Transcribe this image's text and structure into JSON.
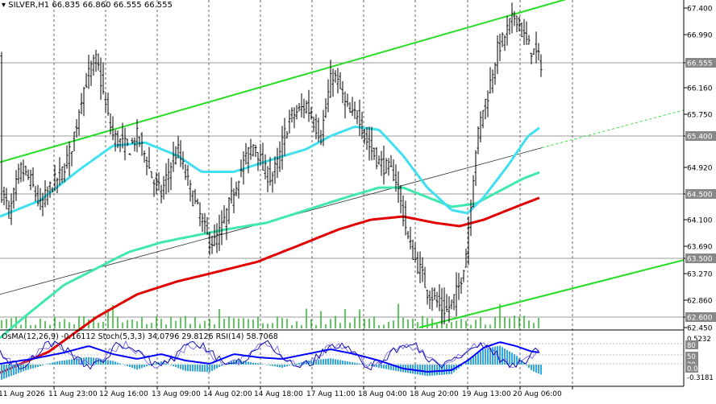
{
  "header": {
    "symbol": "SILVER,H1",
    "ohlc": "66.835 66.860 66.555 66.555"
  },
  "indicator_header": "OsMA(12,26,9) -0.16112 Stoch(5,3,3) 34.0796 29.8126 RSI(14) 58.7068",
  "colors": {
    "price_bars": "#000000",
    "ema_fast": "#40e0f0",
    "ema_mid": "#40e8b0",
    "ema_slow": "#e00000",
    "channel": "#22dd22",
    "level_line": "#777777",
    "volume": "#1db41d",
    "osma_hist": "#33aadd",
    "stoch_main": "#0000aa",
    "stoch_signal": "#7b68ee",
    "rsi": "#0000ff"
  },
  "chart_data": {
    "type": "line",
    "title": "SILVER,H1",
    "y_ticks": [
      "67.400",
      "66.990",
      "66.555",
      "66.160",
      "65.750",
      "65.400",
      "64.920",
      "64.500",
      "64.100",
      "63.690",
      "63.500",
      "63.270",
      "62.860",
      "62.600",
      "62.450"
    ],
    "current_price": "66.555",
    "levels": [
      "66.555",
      "65.400",
      "64.500",
      "63.500",
      "62.600"
    ],
    "ylim": [
      62.45,
      67.6
    ],
    "x_ticks": [
      "11 Aug 2026",
      "11 Aug 23:00",
      "12 Aug 16:00",
      "13 Aug 09:00",
      "14 Aug 02:00",
      "14 Aug 18:00",
      "17 Aug 11:00",
      "18 Aug 04:00",
      "18 Aug 20:00",
      "19 Aug 13:00",
      "20 Aug 06:00"
    ],
    "indicator_y_ticks": [
      "0.5232",
      "80",
      "50",
      "20",
      "0.00",
      "-0.3181"
    ],
    "indicator_ylim": [
      -0.3181,
      0.5232
    ],
    "price_path_keypoints": [
      [
        0,
        64.6
      ],
      [
        12,
        64.2
      ],
      [
        25,
        64.9
      ],
      [
        38,
        64.7
      ],
      [
        50,
        64.3
      ],
      [
        62,
        64.6
      ],
      [
        75,
        64.8
      ],
      [
        88,
        65.2
      ],
      [
        95,
        65.6
      ],
      [
        100,
        66.0
      ],
      [
        108,
        66.3
      ],
      [
        114,
        66.5
      ],
      [
        120,
        66.6
      ],
      [
        126,
        66.2
      ],
      [
        132,
        65.8
      ],
      [
        140,
        65.4
      ],
      [
        150,
        65.3
      ],
      [
        160,
        65.2
      ],
      [
        170,
        65.4
      ],
      [
        180,
        65.1
      ],
      [
        190,
        64.7
      ],
      [
        200,
        64.5
      ],
      [
        210,
        64.9
      ],
      [
        220,
        65.2
      ],
      [
        230,
        64.8
      ],
      [
        240,
        64.4
      ],
      [
        250,
        64.1
      ],
      [
        258,
        63.8
      ],
      [
        266,
        63.75
      ],
      [
        276,
        64.0
      ],
      [
        286,
        64.4
      ],
      [
        296,
        64.8
      ],
      [
        306,
        65.1
      ],
      [
        316,
        65.3
      ],
      [
        326,
        64.9
      ],
      [
        336,
        64.75
      ],
      [
        345,
        65.0
      ],
      [
        352,
        65.4
      ],
      [
        360,
        65.7
      ],
      [
        370,
        65.8
      ],
      [
        380,
        65.9
      ],
      [
        390,
        65.6
      ],
      [
        398,
        65.4
      ],
      [
        406,
        66.0
      ],
      [
        412,
        66.4
      ],
      [
        420,
        66.2
      ],
      [
        428,
        65.9
      ],
      [
        436,
        65.7
      ],
      [
        444,
        65.8
      ],
      [
        452,
        65.4
      ],
      [
        460,
        65.2
      ],
      [
        470,
        65.0
      ],
      [
        480,
        64.9
      ],
      [
        490,
        64.8
      ],
      [
        498,
        64.3
      ],
      [
        506,
        63.8
      ],
      [
        514,
        63.5
      ],
      [
        522,
        63.3
      ],
      [
        530,
        63.0
      ],
      [
        538,
        62.9
      ],
      [
        546,
        62.75
      ],
      [
        554,
        62.7
      ],
      [
        562,
        62.85
      ],
      [
        570,
        63.1
      ],
      [
        578,
        63.6
      ],
      [
        584,
        64.4
      ],
      [
        590,
        65.2
      ],
      [
        598,
        65.8
      ],
      [
        606,
        66.1
      ],
      [
        612,
        66.5
      ],
      [
        618,
        66.8
      ],
      [
        624,
        66.9
      ],
      [
        632,
        67.15
      ],
      [
        640,
        67.3
      ],
      [
        648,
        67.0
      ],
      [
        656,
        66.8
      ],
      [
        664,
        66.7
      ],
      [
        671,
        66.555
      ]
    ],
    "ema_fast_keypoints": [
      [
        0,
        64.15
      ],
      [
        50,
        64.4
      ],
      [
        100,
        64.9
      ],
      [
        140,
        65.25
      ],
      [
        180,
        65.3
      ],
      [
        220,
        65.1
      ],
      [
        250,
        64.85
      ],
      [
        290,
        64.85
      ],
      [
        340,
        65.05
      ],
      [
        380,
        65.2
      ],
      [
        410,
        65.4
      ],
      [
        440,
        65.55
      ],
      [
        470,
        65.5
      ],
      [
        500,
        65.1
      ],
      [
        530,
        64.6
      ],
      [
        560,
        64.25
      ],
      [
        580,
        64.2
      ],
      [
        600,
        64.45
      ],
      [
        630,
        64.95
      ],
      [
        655,
        65.4
      ],
      [
        671,
        65.55
      ]
    ],
    "ema_mid_keypoints": [
      [
        0,
        62.3
      ],
      [
        40,
        62.7
      ],
      [
        80,
        63.1
      ],
      [
        120,
        63.35
      ],
      [
        160,
        63.6
      ],
      [
        200,
        63.75
      ],
      [
        240,
        63.85
      ],
      [
        280,
        63.95
      ],
      [
        330,
        64.05
      ],
      [
        380,
        64.25
      ],
      [
        430,
        64.45
      ],
      [
        470,
        64.6
      ],
      [
        500,
        64.6
      ],
      [
        530,
        64.45
      ],
      [
        560,
        64.3
      ],
      [
        590,
        64.35
      ],
      [
        620,
        64.55
      ],
      [
        650,
        64.75
      ],
      [
        671,
        64.85
      ]
    ],
    "ema_slow_keypoints": [
      [
        0,
        61.8
      ],
      [
        60,
        62.1
      ],
      [
        120,
        62.6
      ],
      [
        170,
        62.95
      ],
      [
        220,
        63.15
      ],
      [
        270,
        63.3
      ],
      [
        320,
        63.45
      ],
      [
        370,
        63.7
      ],
      [
        420,
        63.95
      ],
      [
        460,
        64.1
      ],
      [
        500,
        64.15
      ],
      [
        540,
        64.05
      ],
      [
        570,
        64.0
      ],
      [
        600,
        64.1
      ],
      [
        640,
        64.3
      ],
      [
        671,
        64.45
      ]
    ],
    "channel_upper": [
      [
        0,
        65.0
      ],
      [
        706,
        67.55
      ]
    ],
    "channel_lower": [
      [
        520,
        62.45
      ],
      [
        888,
        63.6
      ]
    ],
    "midline": [
      [
        0,
        62.95
      ],
      [
        888,
        65.95
      ]
    ]
  }
}
